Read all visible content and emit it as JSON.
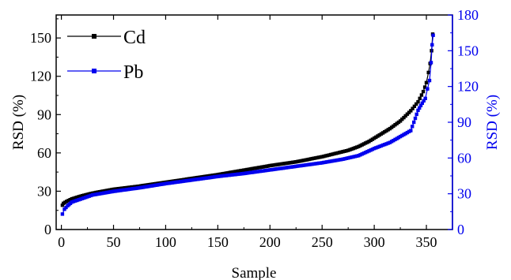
{
  "chart_data": {
    "type": "line",
    "xlabel": "Sample",
    "ylabel_left": "RSD (%)",
    "ylabel_right": "RSD (%)",
    "xlim": [
      -5,
      375
    ],
    "xticks": [
      0,
      50,
      100,
      150,
      200,
      250,
      300,
      350
    ],
    "ylim_left": [
      0,
      168
    ],
    "yticks_left": [
      0,
      30,
      60,
      90,
      120,
      150
    ],
    "ylim_right": [
      0,
      180
    ],
    "yticks_right": [
      0,
      30,
      60,
      90,
      120,
      150,
      180
    ],
    "legend_position": "top-left",
    "colors": {
      "cd": "#000000",
      "pb": "#0000ee",
      "right_axis": "#0000ee"
    },
    "series": [
      {
        "name": "Cd",
        "axis": "left",
        "color": "#000000",
        "marker": "square",
        "points": [
          [
            1,
            19
          ],
          [
            2,
            20.5
          ],
          [
            5,
            22
          ],
          [
            10,
            24
          ],
          [
            20,
            26.5
          ],
          [
            30,
            28.5
          ],
          [
            40,
            30
          ],
          [
            50,
            31.5
          ],
          [
            75,
            34
          ],
          [
            100,
            37
          ],
          [
            125,
            40
          ],
          [
            150,
            43
          ],
          [
            175,
            46.5
          ],
          [
            200,
            50
          ],
          [
            225,
            53
          ],
          [
            250,
            57
          ],
          [
            265,
            60
          ],
          [
            275,
            62
          ],
          [
            285,
            65
          ],
          [
            295,
            69
          ],
          [
            305,
            74
          ],
          [
            315,
            79
          ],
          [
            325,
            85
          ],
          [
            335,
            93
          ],
          [
            342,
            100
          ],
          [
            347,
            108
          ],
          [
            350,
            115
          ],
          [
            352,
            123
          ],
          [
            353.5,
            130
          ],
          [
            355,
            140
          ],
          [
            356,
            153
          ]
        ]
      },
      {
        "name": "Pb",
        "axis": "right",
        "color": "#0000ee",
        "marker": "square",
        "points": [
          [
            1,
            13
          ],
          [
            3,
            17
          ],
          [
            6,
            20
          ],
          [
            10,
            23
          ],
          [
            20,
            26
          ],
          [
            30,
            29
          ],
          [
            50,
            32
          ],
          [
            75,
            35
          ],
          [
            100,
            38.5
          ],
          [
            125,
            41.5
          ],
          [
            150,
            44.5
          ],
          [
            175,
            47
          ],
          [
            200,
            50
          ],
          [
            225,
            53
          ],
          [
            250,
            56
          ],
          [
            270,
            59
          ],
          [
            285,
            62
          ],
          [
            300,
            68
          ],
          [
            315,
            73
          ],
          [
            325,
            78
          ],
          [
            335,
            83
          ],
          [
            338,
            90
          ],
          [
            342,
            100
          ],
          [
            346,
            106
          ],
          [
            349,
            110
          ],
          [
            351,
            118
          ],
          [
            353,
            125
          ],
          [
            354.5,
            140
          ],
          [
            355.5,
            155
          ],
          [
            356.5,
            163
          ]
        ]
      }
    ]
  }
}
